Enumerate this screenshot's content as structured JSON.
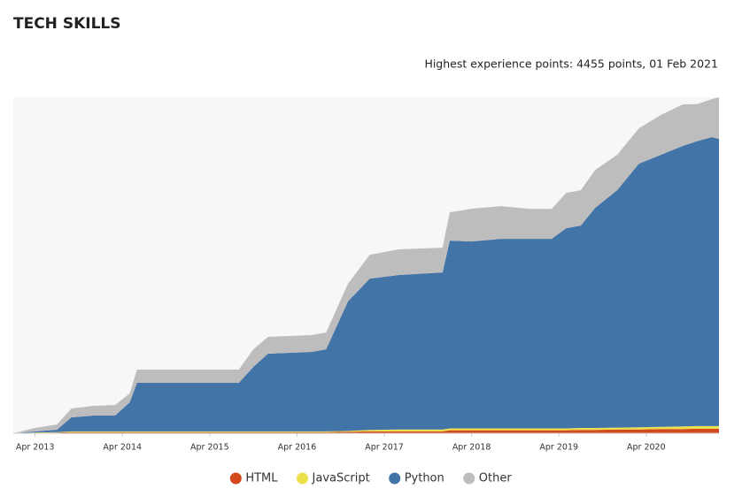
{
  "chart_data": {
    "type": "stacked-area",
    "title": "TECH SKILLS",
    "subtitle": "Highest experience points: 4455 points, 01 Feb 2021",
    "x": [
      "2013-01",
      "2013-04",
      "2013-07",
      "2013-09",
      "2013-12",
      "2014-03",
      "2014-05",
      "2014-06",
      "2015-05",
      "2015-08",
      "2015-10",
      "2015-12",
      "2016-06",
      "2016-08",
      "2016-11",
      "2017-02",
      "2017-06",
      "2017-12",
      "2018-01",
      "2018-04",
      "2018-08",
      "2018-12",
      "2019-03",
      "2019-05",
      "2019-07",
      "2019-09",
      "2019-12",
      "2020-03",
      "2020-06",
      "2020-09",
      "2020-11",
      "2021-01",
      "2021-02"
    ],
    "series": [
      {
        "name": "HTML",
        "color": "#d4491b",
        "values": [
          0,
          5,
          10,
          15,
          15,
          15,
          15,
          15,
          15,
          15,
          15,
          15,
          15,
          15,
          20,
          25,
          25,
          25,
          40,
          40,
          40,
          40,
          40,
          40,
          45,
          45,
          50,
          50,
          55,
          55,
          60,
          60,
          60
        ]
      },
      {
        "name": "JavaScript",
        "color": "#ece04b",
        "values": [
          0,
          5,
          5,
          10,
          10,
          10,
          10,
          10,
          10,
          10,
          10,
          10,
          10,
          10,
          10,
          20,
          25,
          25,
          25,
          25,
          25,
          25,
          25,
          25,
          25,
          25,
          25,
          30,
          30,
          35,
          35,
          35,
          35
        ]
      },
      {
        "name": "Python",
        "color": "#4374a8",
        "values": [
          0,
          13,
          32,
          186,
          209,
          209,
          385,
          643,
          643,
          643,
          854,
          1030,
          1053,
          1088,
          1718,
          2006,
          2048,
          2083,
          2490,
          2478,
          2513,
          2513,
          2513,
          2654,
          2684,
          2919,
          3148,
          3495,
          3607,
          3719,
          3778,
          3831,
          3808
        ]
      },
      {
        "name": "Other",
        "color": "#bdbdbd",
        "values": [
          0,
          47,
          70,
          117,
          129,
          141,
          117,
          176,
          176,
          176,
          234,
          223,
          223,
          223,
          234,
          316,
          340,
          328,
          375,
          434,
          434,
          398,
          398,
          469,
          469,
          504,
          469,
          469,
          527,
          551,
          492,
          504,
          552
        ]
      }
    ],
    "xlim": [
      "2013-01",
      "2021-02"
    ],
    "ylim": [
      0,
      4455
    ],
    "xticks": [
      {
        "value": "2013-04",
        "label": "Apr 2013"
      },
      {
        "value": "2014-04",
        "label": "Apr 2014"
      },
      {
        "value": "2015-04",
        "label": "Apr 2015"
      },
      {
        "value": "2016-04",
        "label": "Apr 2016"
      },
      {
        "value": "2017-04",
        "label": "Apr 2017"
      },
      {
        "value": "2018-04",
        "label": "Apr 2018"
      },
      {
        "value": "2019-04",
        "label": "Apr 2019"
      },
      {
        "value": "2020-04",
        "label": "Apr 2020"
      }
    ],
    "grid": false,
    "legend": "bottom"
  }
}
